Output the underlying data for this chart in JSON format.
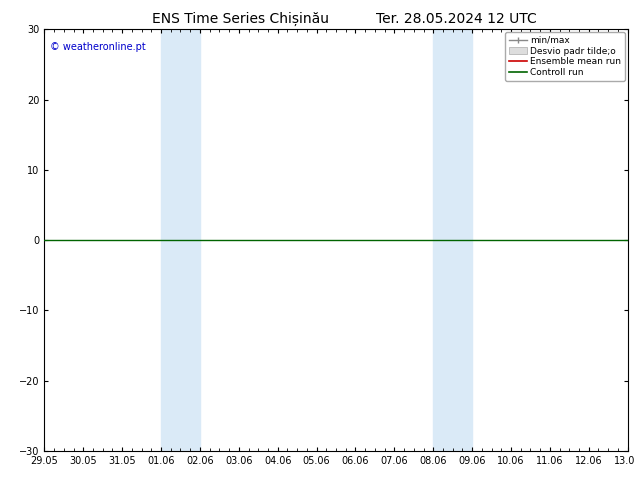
{
  "title": "ENS Time Series Chișinău",
  "title_right": "Ter. 28.05.2024 12 UTC",
  "watermark": "© weatheronline.pt",
  "ylim": [
    -30,
    30
  ],
  "yticks": [
    -30,
    -20,
    -10,
    0,
    10,
    20,
    30
  ],
  "xtick_labels": [
    "29.05",
    "30.05",
    "31.05",
    "01.06",
    "02.06",
    "03.06",
    "04.06",
    "05.06",
    "06.06",
    "07.06",
    "08.06",
    "09.06",
    "10.06",
    "11.06",
    "12.06",
    "13.06"
  ],
  "shaded_regions": [
    {
      "xstart": "01.06",
      "xend": "02.06"
    },
    {
      "xstart": "08.06",
      "xend": "09.06"
    }
  ],
  "shaded_color": "#daeaf7",
  "zero_line_color": "#006400",
  "legend_labels": [
    "min/max",
    "Desvio padr tilde;o",
    "Ensemble mean run",
    "Controll run"
  ],
  "legend_colors": [
    "#888888",
    "#cccccc",
    "#cc0000",
    "#006400"
  ],
  "background_color": "#ffffff",
  "plot_bg_color": "#ffffff",
  "border_color": "#000000",
  "title_fontsize": 10,
  "tick_fontsize": 7,
  "watermark_color": "#0000cc",
  "watermark_fontsize": 7
}
